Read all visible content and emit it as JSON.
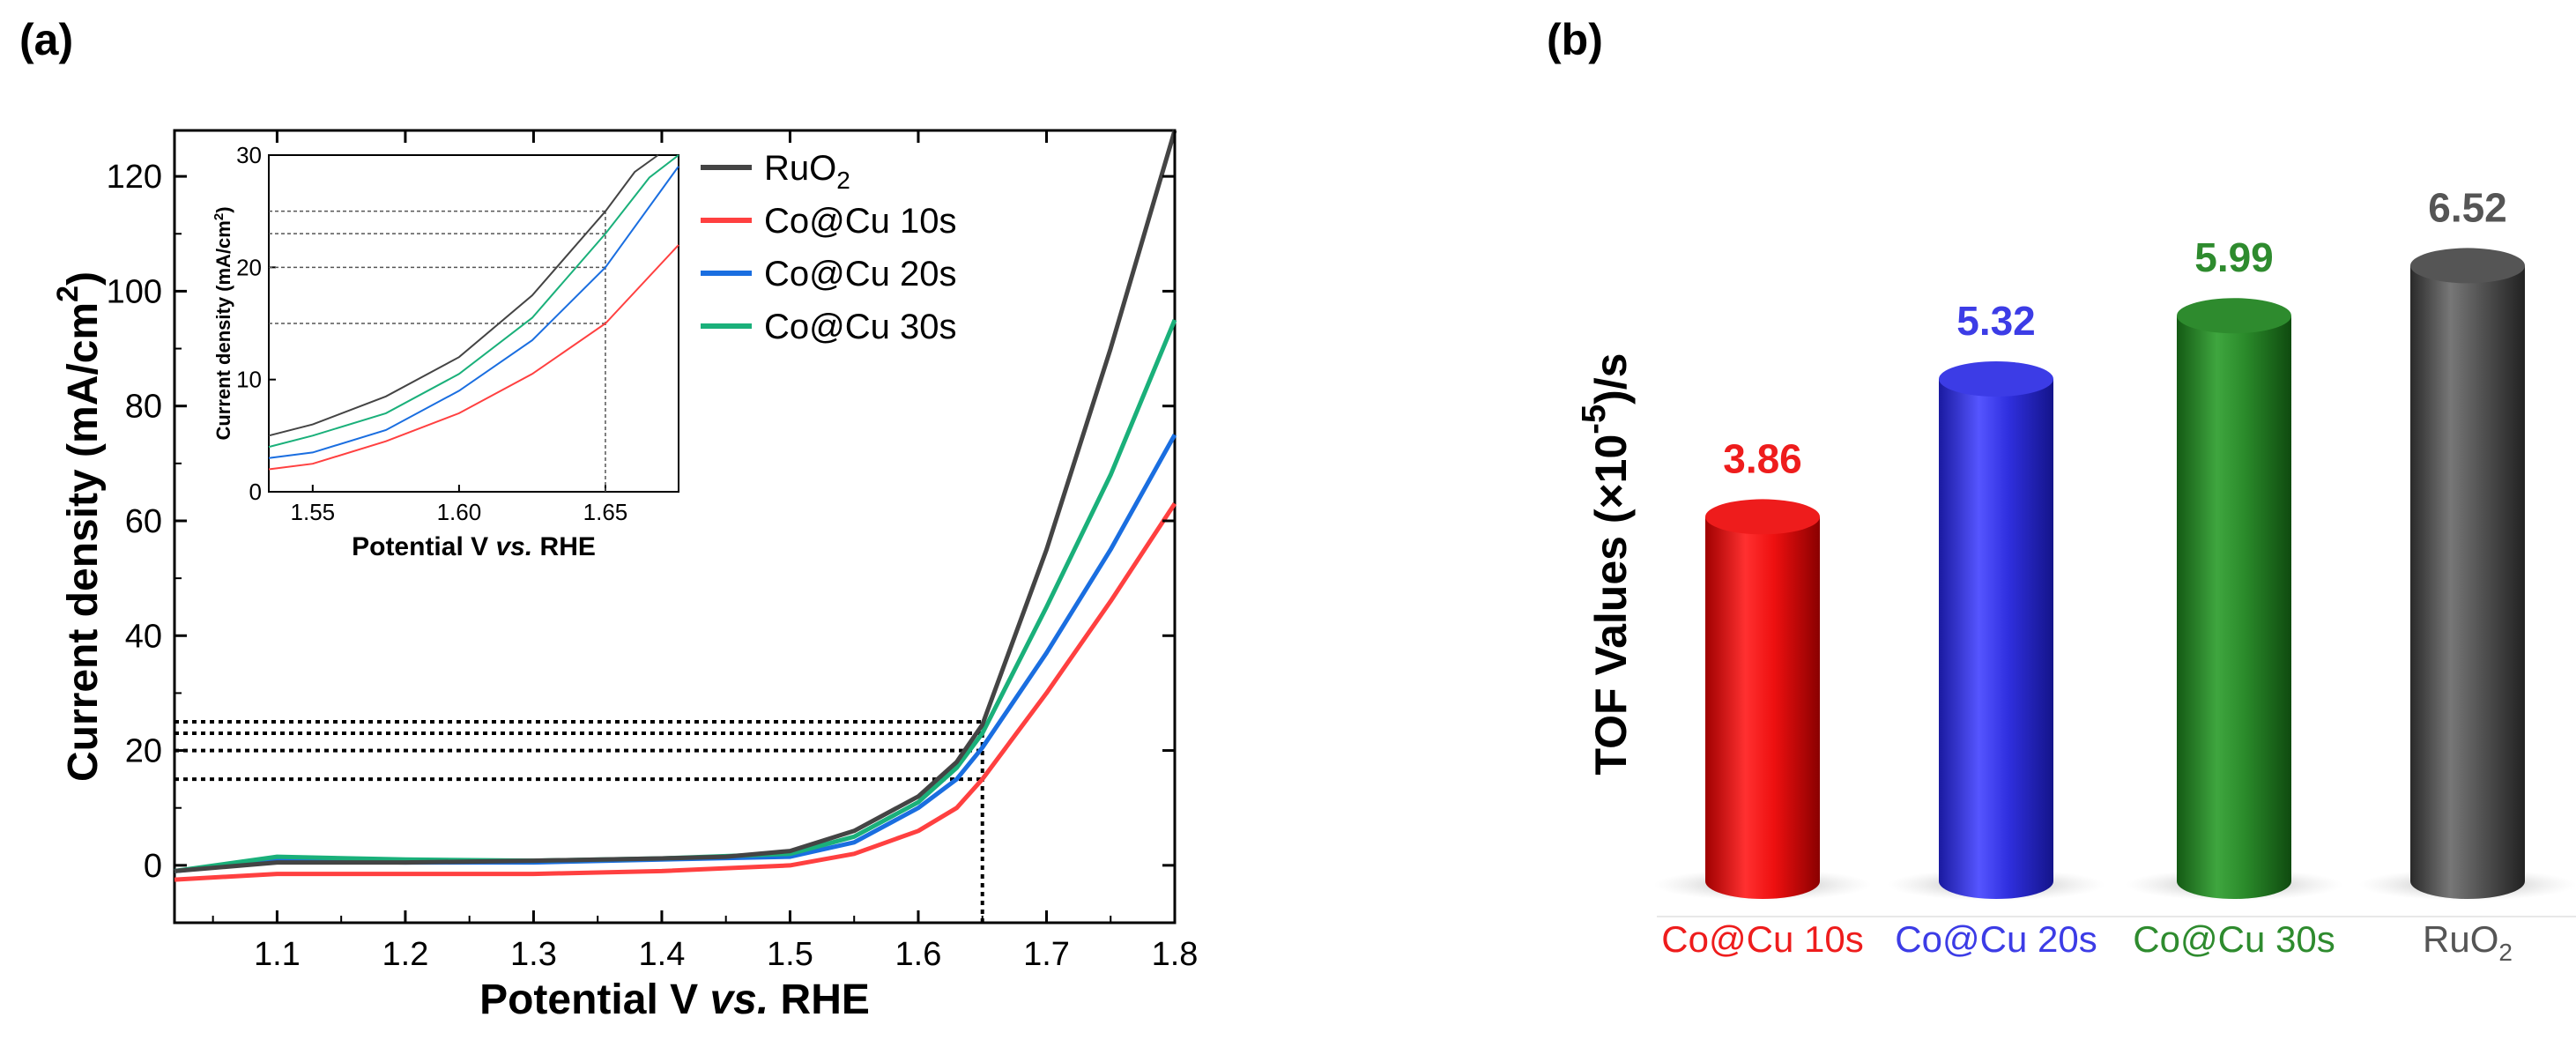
{
  "chart_data": [
    {
      "type": "line",
      "panel_label": "(a)",
      "xlabel": {
        "pre": "Potential V ",
        "italic": "vs.",
        "post": " RHE"
      },
      "ylabel": {
        "main": "Current density (mA/cm",
        "sup": "2",
        "close": ")"
      },
      "xlim": [
        1.02,
        1.8
      ],
      "ylim": [
        -10,
        128
      ],
      "xticks": [
        "1.1",
        "1.2",
        "1.3",
        "1.4",
        "1.5",
        "1.6",
        "1.7",
        "1.8"
      ],
      "yticks": [
        "0",
        "20",
        "40",
        "60",
        "80",
        "100",
        "120"
      ],
      "legend": [
        "RuO",
        "Co@Cu 10s",
        "Co@Cu 20s",
        "Co@Cu 30s"
      ],
      "legend_sub": "2",
      "legend_position": "top-right",
      "reference_lines": {
        "x": 1.65,
        "y": [
          15,
          20,
          23,
          25
        ]
      },
      "series": [
        {
          "name": "RuO2",
          "color": "#444444",
          "x": [
            1.02,
            1.1,
            1.2,
            1.3,
            1.4,
            1.45,
            1.5,
            1.55,
            1.6,
            1.63,
            1.65,
            1.7,
            1.75,
            1.8
          ],
          "y": [
            -1,
            0.5,
            0.5,
            0.8,
            1.2,
            1.5,
            2.5,
            6,
            12,
            18,
            24.5,
            55,
            90,
            128
          ]
        },
        {
          "name": "Co@Cu 10s",
          "color": "#ff4040",
          "x": [
            1.02,
            1.1,
            1.2,
            1.3,
            1.4,
            1.5,
            1.55,
            1.6,
            1.63,
            1.65,
            1.7,
            1.75,
            1.8
          ],
          "y": [
            -2.5,
            -1.5,
            -1.5,
            -1.5,
            -1,
            0,
            2,
            6,
            10,
            15,
            30,
            46,
            63
          ]
        },
        {
          "name": "Co@Cu 20s",
          "color": "#1a6ee0",
          "x": [
            1.02,
            1.1,
            1.2,
            1.3,
            1.4,
            1.5,
            1.55,
            1.6,
            1.63,
            1.65,
            1.7,
            1.75,
            1.8
          ],
          "y": [
            -1,
            0.8,
            0.5,
            0.5,
            1,
            1.5,
            4,
            10,
            15,
            20.5,
            37,
            55,
            75
          ]
        },
        {
          "name": "Co@Cu 30s",
          "color": "#1ab07a",
          "x": [
            1.02,
            1.1,
            1.2,
            1.3,
            1.4,
            1.5,
            1.55,
            1.6,
            1.63,
            1.65,
            1.7,
            1.75,
            1.8
          ],
          "y": [
            -1,
            1.5,
            1,
            0.8,
            1.2,
            2,
            5,
            11,
            17,
            23,
            45,
            68,
            95
          ]
        }
      ],
      "inset": {
        "xlabel": {
          "pre": "Potential V ",
          "italic": "vs.",
          "post": " RHE"
        },
        "ylabel": {
          "main": "Current density (mA/cm",
          "sup": "2",
          "close": ")"
        },
        "xlim": [
          1.535,
          1.675
        ],
        "ylim": [
          0,
          30
        ],
        "xticks": [
          "1.55",
          "1.60",
          "1.65"
        ],
        "yticks": [
          "0",
          "10",
          "20",
          "30"
        ],
        "reference_lines": {
          "x": 1.65,
          "y": [
            15,
            20,
            23,
            25
          ]
        },
        "series": [
          {
            "name": "RuO2",
            "color": "#444444",
            "x": [
              1.535,
              1.55,
              1.575,
              1.6,
              1.625,
              1.65,
              1.66,
              1.668
            ],
            "y": [
              5,
              6,
              8.5,
              12,
              17.5,
              25,
              28.5,
              31
            ]
          },
          {
            "name": "Co@Cu 10s",
            "color": "#ff4040",
            "x": [
              1.535,
              1.55,
              1.575,
              1.6,
              1.625,
              1.65,
              1.675
            ],
            "y": [
              2,
              2.5,
              4.5,
              7,
              10.5,
              15,
              22
            ]
          },
          {
            "name": "Co@Cu 20s",
            "color": "#1a6ee0",
            "x": [
              1.535,
              1.55,
              1.575,
              1.6,
              1.625,
              1.65,
              1.675
            ],
            "y": [
              3,
              3.5,
              5.5,
              9,
              13.5,
              20,
              29
            ]
          },
          {
            "name": "Co@Cu 30s",
            "color": "#1ab07a",
            "x": [
              1.535,
              1.55,
              1.575,
              1.6,
              1.625,
              1.65,
              1.665,
              1.675
            ],
            "y": [
              4,
              5,
              7,
              10.5,
              15.5,
              23,
              28,
              31
            ]
          }
        ]
      }
    },
    {
      "type": "bar",
      "panel_label": "(b)",
      "ylabel": {
        "pre": "TOF Values (×10",
        "sup": "-5",
        "post": ")/s"
      },
      "categories": [
        "Co@Cu 10s",
        "Co@Cu 20s",
        "Co@Cu 30s",
        "RuO"
      ],
      "category_sub": [
        "",
        "",
        "",
        "2"
      ],
      "values": [
        3.86,
        5.32,
        5.99,
        6.52
      ],
      "value_labels": [
        "3.86",
        "5.32",
        "5.99",
        "6.52"
      ],
      "colors": [
        "#ee1c1c",
        "#3c3ce6",
        "#2e8b2e",
        "#555555"
      ],
      "ylim": [
        0,
        7
      ]
    }
  ]
}
